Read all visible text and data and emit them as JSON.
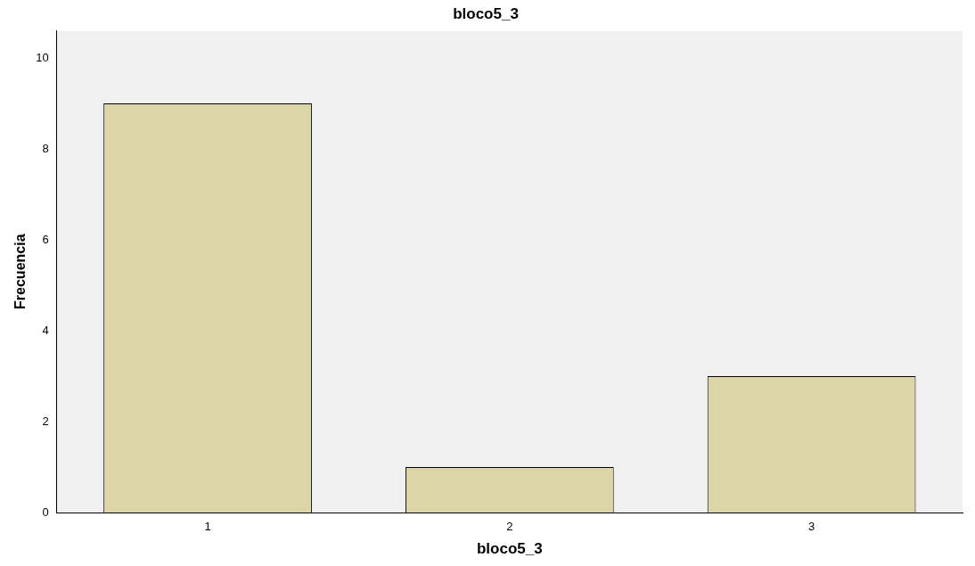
{
  "chart_data": {
    "type": "bar",
    "title": "bloco5_3",
    "xlabel": "bloco5_3",
    "ylabel": "Frecuencia",
    "categories": [
      "1",
      "2",
      "3"
    ],
    "values": [
      9,
      1,
      3
    ],
    "color": "#dcd5a5",
    "ylim": [
      0,
      10.6
    ],
    "yticks": [
      0,
      2,
      4,
      6,
      8,
      10
    ]
  }
}
